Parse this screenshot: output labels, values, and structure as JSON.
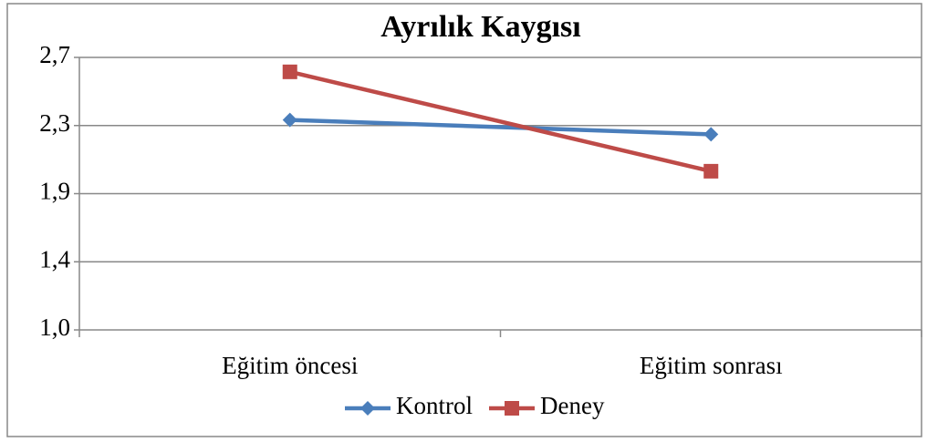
{
  "chart_data": {
    "type": "line",
    "title": "Ayrılık Kaygısı",
    "categories": [
      "Eğitim öncesi",
      "Eğitim sonrası"
    ],
    "series": [
      {
        "name": "Kontrol",
        "color": "#4a7ebb",
        "marker": "diamond",
        "values": [
          2.31,
          2.22
        ]
      },
      {
        "name": "Deney",
        "color": "#be4b48",
        "marker": "square",
        "values": [
          2.61,
          1.99
        ]
      }
    ],
    "ylim": [
      1.0,
      2.7
    ],
    "yticks": [
      {
        "value": 1.0,
        "label": "1,0"
      },
      {
        "value": 1.425,
        "label": "1,4"
      },
      {
        "value": 1.85,
        "label": "1,9"
      },
      {
        "value": 2.275,
        "label": "2,3"
      },
      {
        "value": 2.7,
        "label": "2,7"
      }
    ],
    "grid": true,
    "legend": "bottom"
  }
}
